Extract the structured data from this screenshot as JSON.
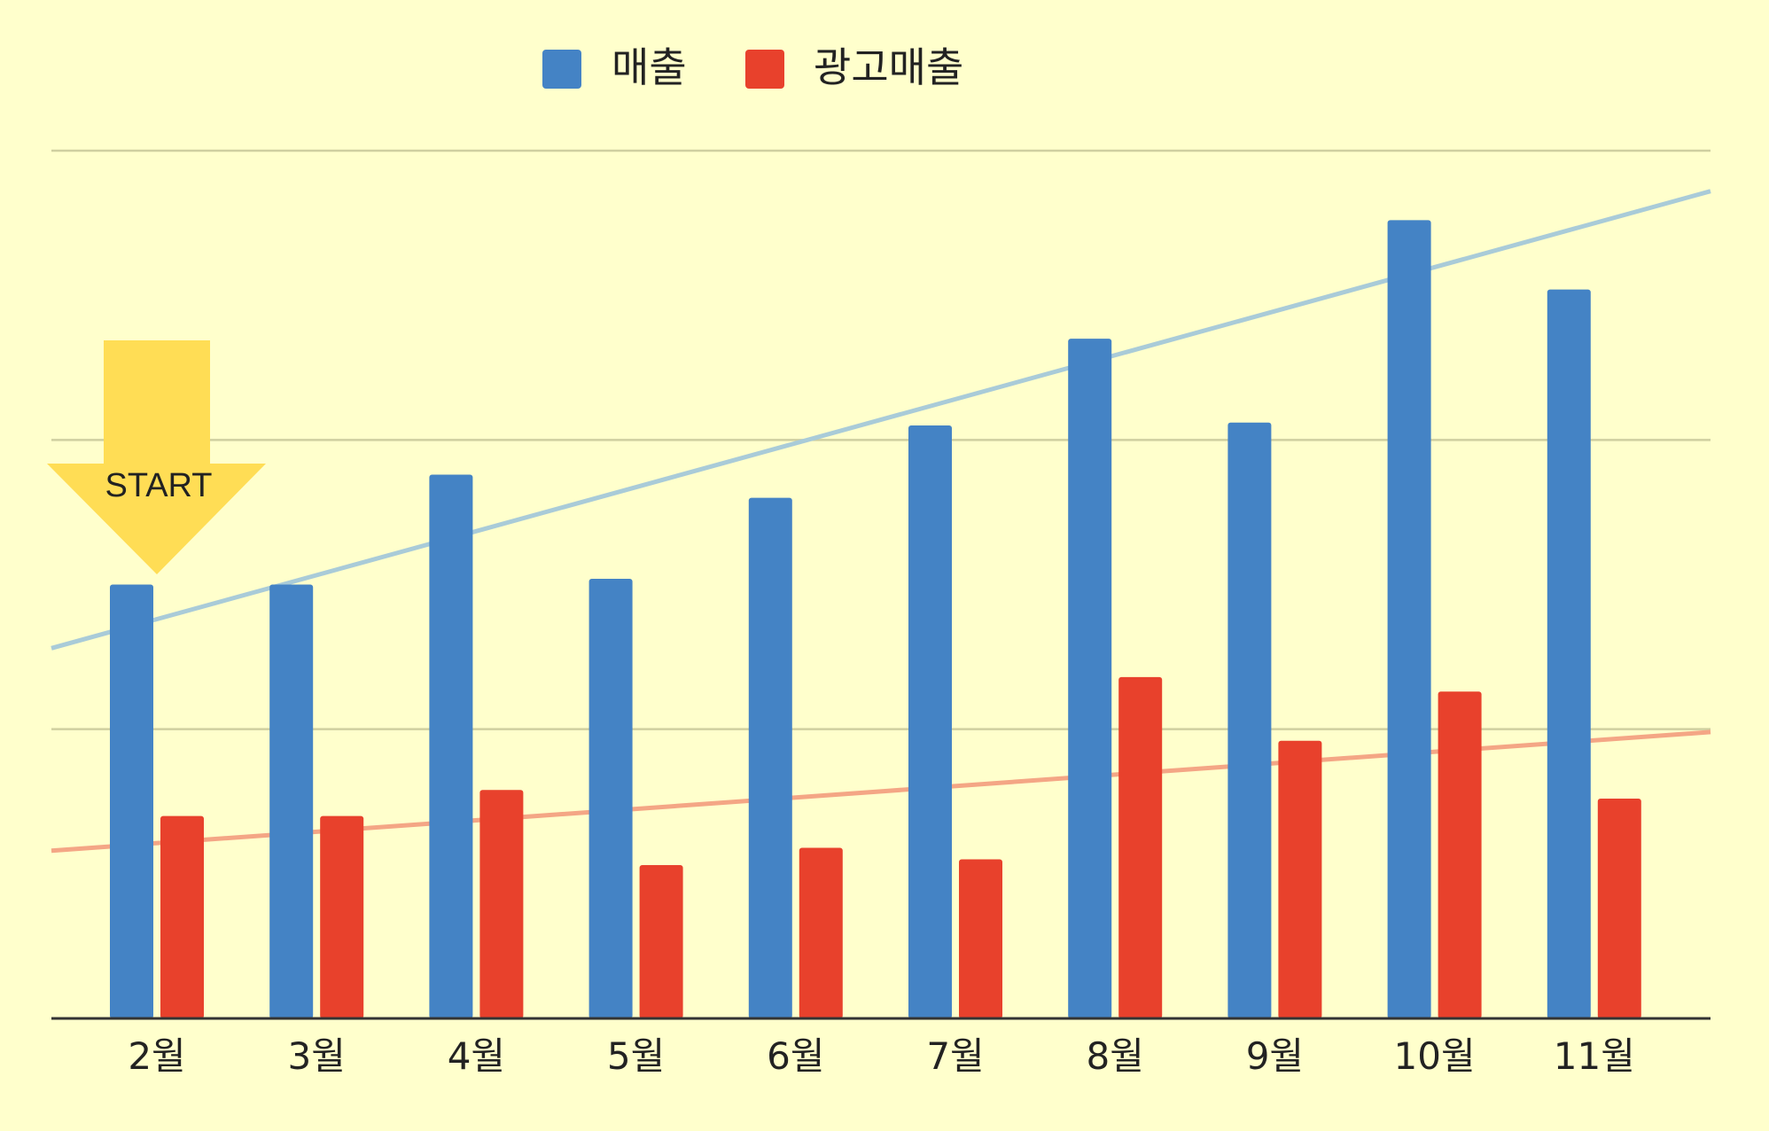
{
  "chart_data": {
    "type": "bar",
    "title": "",
    "xlabel": "",
    "ylabel": "",
    "categories": [
      "2월",
      "3월",
      "4월",
      "5월",
      "6월",
      "7월",
      "8월",
      "9월",
      "10월",
      "11월"
    ],
    "series": [
      {
        "name": "매출",
        "color": "#4483c5",
        "values": [
          1.5,
          1.5,
          1.88,
          1.52,
          1.8,
          2.05,
          2.35,
          2.06,
          2.76,
          2.52
        ]
      },
      {
        "name": "광고매출",
        "color": "#e8412c",
        "values": [
          0.7,
          0.7,
          0.79,
          0.53,
          0.59,
          0.55,
          1.18,
          0.96,
          1.13,
          0.76
        ]
      }
    ],
    "trendlines": [
      {
        "series": "매출",
        "color": "#a9cbd8",
        "start": 1.28,
        "end": 2.86
      },
      {
        "series": "광고매출",
        "color": "#f4a685",
        "start": 0.58,
        "end": 0.99
      }
    ],
    "ylim": [
      0,
      3
    ],
    "y_ticks": [
      0,
      1,
      2,
      3
    ],
    "y_tick_labels_shown": false,
    "grid": true,
    "legend_position": "top-center",
    "annotation": {
      "text": "START",
      "shape": "down-arrow",
      "color": "#ffdd55",
      "target_category": "2월"
    }
  }
}
